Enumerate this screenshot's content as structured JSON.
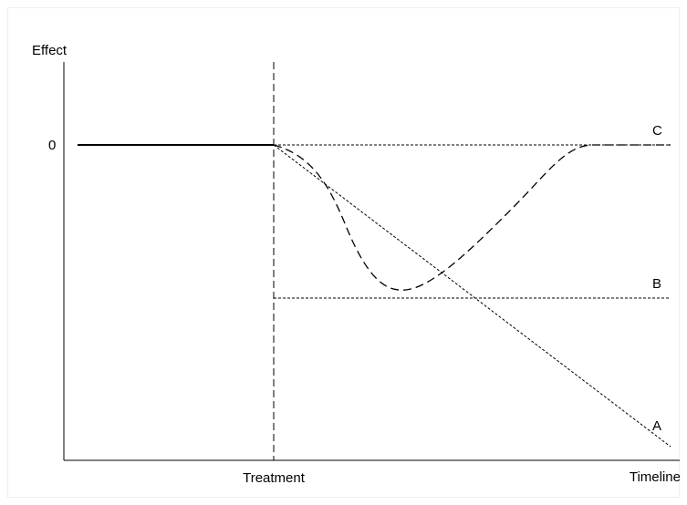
{
  "axis_labels": {
    "y": "Effect",
    "x": "Timeline"
  },
  "y_marker": "0",
  "treatment_label": "Treatment",
  "curve_labels": [
    "C",
    "B",
    "A"
  ]
}
